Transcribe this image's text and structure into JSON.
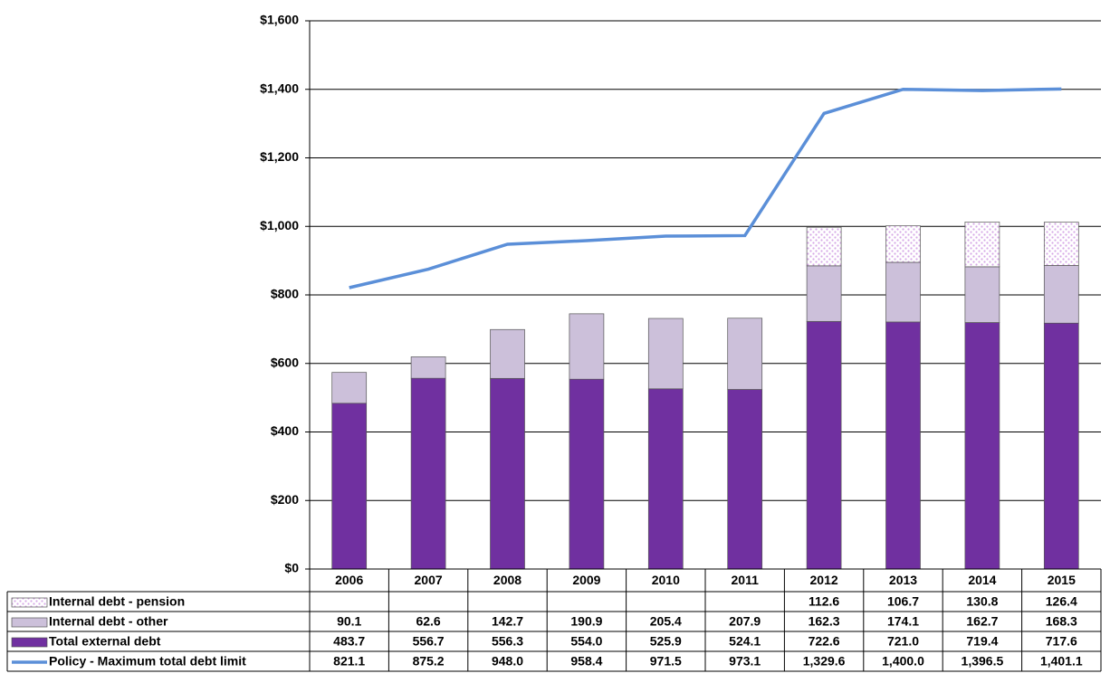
{
  "chart_data": {
    "type": "bar",
    "stacked": true,
    "categories": [
      "2006",
      "2007",
      "2008",
      "2009",
      "2010",
      "2011",
      "2012",
      "2013",
      "2014",
      "2015"
    ],
    "series": [
      {
        "name": "Internal debt - pension",
        "color": "#d6a8e6",
        "pattern": "dots",
        "values": [
          null,
          null,
          null,
          null,
          null,
          null,
          112.6,
          106.7,
          130.8,
          126.4
        ]
      },
      {
        "name": "Internal debt - other",
        "color": "#ccc0da",
        "values": [
          90.1,
          62.6,
          142.7,
          190.9,
          205.4,
          207.9,
          162.3,
          174.1,
          162.7,
          168.3
        ]
      },
      {
        "name": "Total external debt",
        "color": "#7030a0",
        "values": [
          483.7,
          556.7,
          556.3,
          554.0,
          525.9,
          524.1,
          722.6,
          721.0,
          719.4,
          717.6
        ],
        "value_labels": [
          "483.7",
          "556.7",
          "556.3",
          "554.0",
          "525.9",
          "524.1",
          "722.6",
          "721.0",
          "719.4",
          "717.6"
        ]
      },
      {
        "name": "Policy - Maximum total debt limit",
        "color": "#5b8fd8",
        "type": "line",
        "values": [
          821.1,
          875.2,
          948.0,
          958.4,
          971.5,
          973.1,
          1329.6,
          1400.0,
          1396.5,
          1401.1
        ],
        "value_labels": [
          "821.1",
          "875.2",
          "948.0",
          "958.4",
          "971.5",
          "973.1",
          "1,329.6",
          "1,400.0",
          "1,396.5",
          "1,401.1"
        ]
      }
    ],
    "ylim": [
      0,
      1600
    ],
    "yticks": [
      {
        "value": 0,
        "label": "$0"
      },
      {
        "value": 200,
        "label": "$200"
      },
      {
        "value": 400,
        "label": "$400"
      },
      {
        "value": 600,
        "label": "$600"
      },
      {
        "value": 800,
        "label": "$800"
      },
      {
        "value": 1000,
        "label": "$1,000"
      },
      {
        "value": 1200,
        "label": "$1,200"
      },
      {
        "value": 1400,
        "label": "$1,400"
      },
      {
        "value": 1600,
        "label": "$1,600"
      }
    ],
    "grid": true,
    "data_table": true
  }
}
